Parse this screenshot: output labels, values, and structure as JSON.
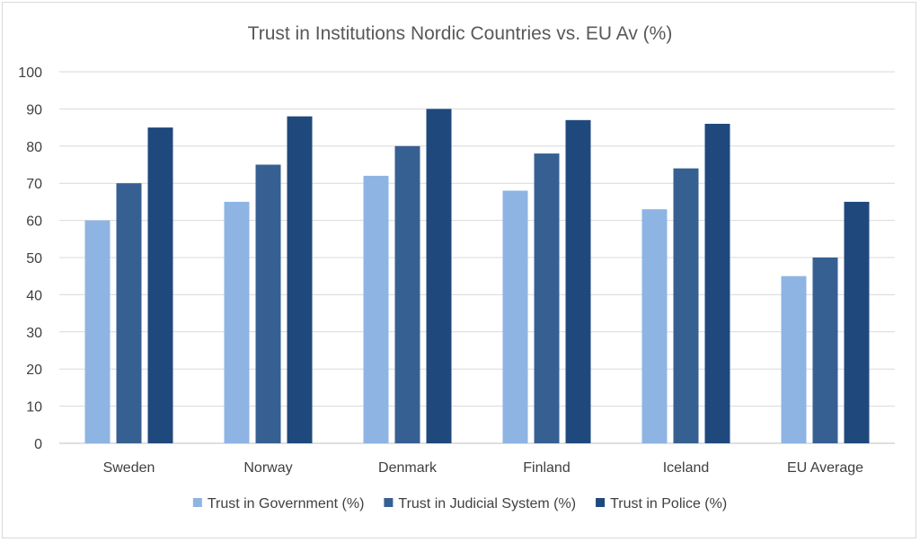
{
  "chart_data": {
    "type": "bar",
    "title": "Trust in Institutions Nordic Countries vs. EU Av (%)",
    "categories": [
      "Sweden",
      "Norway",
      "Denmark",
      "Finland",
      "Iceland",
      "EU Average"
    ],
    "series": [
      {
        "name": "Trust in Government (%)",
        "values": [
          60,
          65,
          72,
          68,
          63,
          45
        ],
        "color": "#8eb4e3"
      },
      {
        "name": "Trust in Judicial System (%)",
        "values": [
          70,
          75,
          80,
          78,
          74,
          50
        ],
        "color": "#376092"
      },
      {
        "name": "Trust in Police (%)",
        "values": [
          85,
          88,
          90,
          87,
          86,
          65
        ],
        "color": "#1f497d"
      }
    ],
    "ylim": [
      0,
      100
    ],
    "yticks": [
      0,
      10,
      20,
      30,
      40,
      50,
      60,
      70,
      80,
      90,
      100
    ],
    "grid": true,
    "legend": "bottom"
  }
}
